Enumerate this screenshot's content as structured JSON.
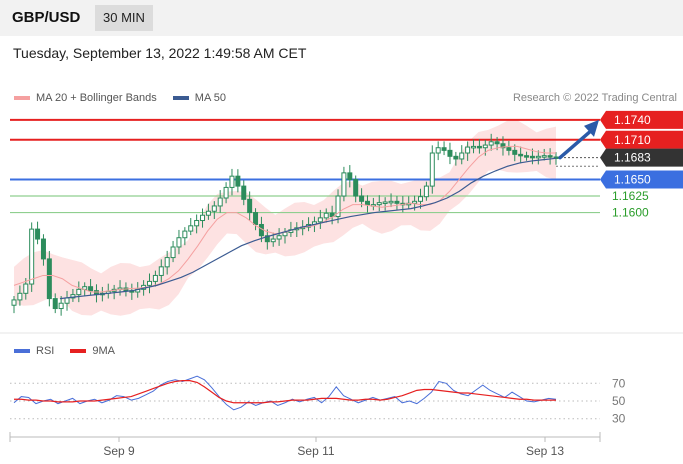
{
  "header": {
    "symbol": "GBP/USD",
    "timeframe": "30 MIN"
  },
  "datetime": "Tuesday, September 13, 2022 1:49:58 AM CET",
  "legend": {
    "ma20": "MA 20 + Bollinger Bands",
    "ma50": "MA 50",
    "rsi": "RSI",
    "rsi_ma": "9MA"
  },
  "credit": "Research © 2022 Trading Central",
  "colors": {
    "bb_fill": "#fde2e2",
    "ma20": "#f5a0a0",
    "ma50": "#3b5b92",
    "resistance": "#e62020",
    "support": "#3b6fe0",
    "support2": "#8fcf8f",
    "support_text": "#2a9d2a",
    "current": "#333333",
    "arrow": "#2a5aa8",
    "rsi": "#4a6fd8",
    "rsi_ma": "#e62020",
    "candle": "#2c8c5c"
  },
  "chart_data": [
    {
      "type": "candlestick",
      "y_unit": "GBP/USD",
      "ylim": [
        1.1415,
        1.1755
      ],
      "x_labels": [
        "Sep 9",
        "Sep 11",
        "Sep 13"
      ],
      "current_price": 1.1683,
      "levels": [
        {
          "label": "1.1740",
          "value": 1.174,
          "kind": "resistance"
        },
        {
          "label": "1.1710",
          "value": 1.171,
          "kind": "resistance"
        },
        {
          "label": "1.1650",
          "value": 1.165,
          "kind": "support"
        },
        {
          "label": "1.1625",
          "value": 1.1625,
          "kind": "support2"
        },
        {
          "label": "1.1600",
          "value": 1.16,
          "kind": "support2"
        }
      ],
      "close_approx": [
        1.1468,
        1.1478,
        1.1492,
        1.1575,
        1.156,
        1.153,
        1.147,
        1.1455,
        1.1463,
        1.1471,
        1.1476,
        1.1484,
        1.1488,
        1.1482,
        1.1476,
        1.1478,
        1.1481,
        1.1484,
        1.1486,
        1.1482,
        1.148,
        1.1484,
        1.149,
        1.1496,
        1.1505,
        1.1518,
        1.1532,
        1.1548,
        1.1562,
        1.1572,
        1.158,
        1.1588,
        1.1596,
        1.1602,
        1.161,
        1.1622,
        1.1638,
        1.1655,
        1.164,
        1.162,
        1.16,
        1.1582,
        1.1565,
        1.1556,
        1.156,
        1.1565,
        1.157,
        1.1574,
        1.1577,
        1.1578,
        1.1582,
        1.1586,
        1.1592,
        1.1599,
        1.1594,
        1.1625,
        1.166,
        1.165,
        1.1625,
        1.1617,
        1.1612,
        1.1612,
        1.1615,
        1.1616,
        1.1617,
        1.1614,
        1.1612,
        1.1614,
        1.1617,
        1.1624,
        1.164,
        1.169,
        1.1698,
        1.1694,
        1.1685,
        1.1681,
        1.169,
        1.1699,
        1.17,
        1.1698,
        1.1702,
        1.1707,
        1.1704,
        1.1698,
        1.1694,
        1.1688,
        1.1686,
        1.1685,
        1.1684,
        1.1685,
        1.1686,
        1.1684,
        1.1683
      ],
      "ma20_approx": [
        1.149,
        1.1495,
        1.15,
        1.1505,
        1.1505,
        1.15,
        1.149,
        1.1485,
        1.148,
        1.148,
        1.1482,
        1.1484,
        1.1485,
        1.1486,
        1.1488,
        1.1492,
        1.15,
        1.1512,
        1.153,
        1.155,
        1.1572,
        1.159,
        1.16,
        1.16,
        1.1592,
        1.158,
        1.1572,
        1.1568,
        1.157,
        1.1575,
        1.1578,
        1.158,
        1.1586,
        1.1594,
        1.1605,
        1.1612,
        1.1612,
        1.161,
        1.1608,
        1.161,
        1.1612,
        1.1614,
        1.1612,
        1.1612,
        1.1618,
        1.1632,
        1.165,
        1.1668,
        1.1684,
        1.1694,
        1.1698,
        1.17,
        1.17,
        1.1696,
        1.1692,
        1.169,
        1.169
      ],
      "ma50_approx": [
        1.147,
        1.1472,
        1.1474,
        1.1476,
        1.1478,
        1.148,
        1.1482,
        1.1486,
        1.149,
        1.1496,
        1.1502,
        1.151,
        1.152,
        1.153,
        1.154,
        1.155,
        1.1557,
        1.1563,
        1.1568,
        1.1573,
        1.1578,
        1.1582,
        1.1586,
        1.159,
        1.1594,
        1.1597,
        1.16,
        1.1602,
        1.1604,
        1.1606,
        1.161,
        1.1615,
        1.1622,
        1.1632,
        1.1645,
        1.1655,
        1.1663,
        1.167,
        1.1675,
        1.1678,
        1.168,
        1.1682
      ],
      "forecast_target": 1.174
    },
    {
      "type": "line",
      "title": "RSI",
      "y_ticks": [
        70,
        50,
        30
      ],
      "ylim": [
        15,
        85
      ],
      "series": [
        {
          "name": "RSI",
          "values": [
            48,
            55,
            54,
            47,
            50,
            52,
            47,
            50,
            53,
            47,
            50,
            52,
            48,
            51,
            56,
            55,
            51,
            53,
            57,
            61,
            68,
            72,
            74,
            72,
            75,
            78,
            74,
            65,
            55,
            46,
            40,
            43,
            49,
            45,
            48,
            50,
            45,
            48,
            52,
            49,
            52,
            54,
            48,
            55,
            66,
            56,
            52,
            48,
            51,
            54,
            51,
            53,
            55,
            48,
            50,
            47,
            53,
            60,
            72,
            70,
            62,
            58,
            56,
            62,
            68,
            62,
            58,
            54,
            60,
            55,
            50,
            49,
            51,
            53,
            52
          ]
        },
        {
          "name": "9MA",
          "values": [
            52,
            52,
            51,
            51,
            50,
            50,
            49,
            49,
            49,
            50,
            50,
            50,
            51,
            52,
            53,
            54,
            55,
            58,
            61,
            64,
            67,
            70,
            72,
            73,
            73,
            71,
            66,
            60,
            54,
            50,
            48,
            48,
            48,
            48,
            48,
            49,
            49,
            50,
            51,
            51,
            51,
            52,
            53,
            53,
            53,
            52,
            51,
            51,
            52,
            52,
            51,
            52,
            54,
            56,
            59,
            62,
            63,
            63,
            62,
            61,
            60,
            59,
            59,
            58,
            57,
            56,
            55,
            54,
            53,
            52,
            52,
            51,
            51,
            51,
            51
          ]
        }
      ]
    }
  ]
}
